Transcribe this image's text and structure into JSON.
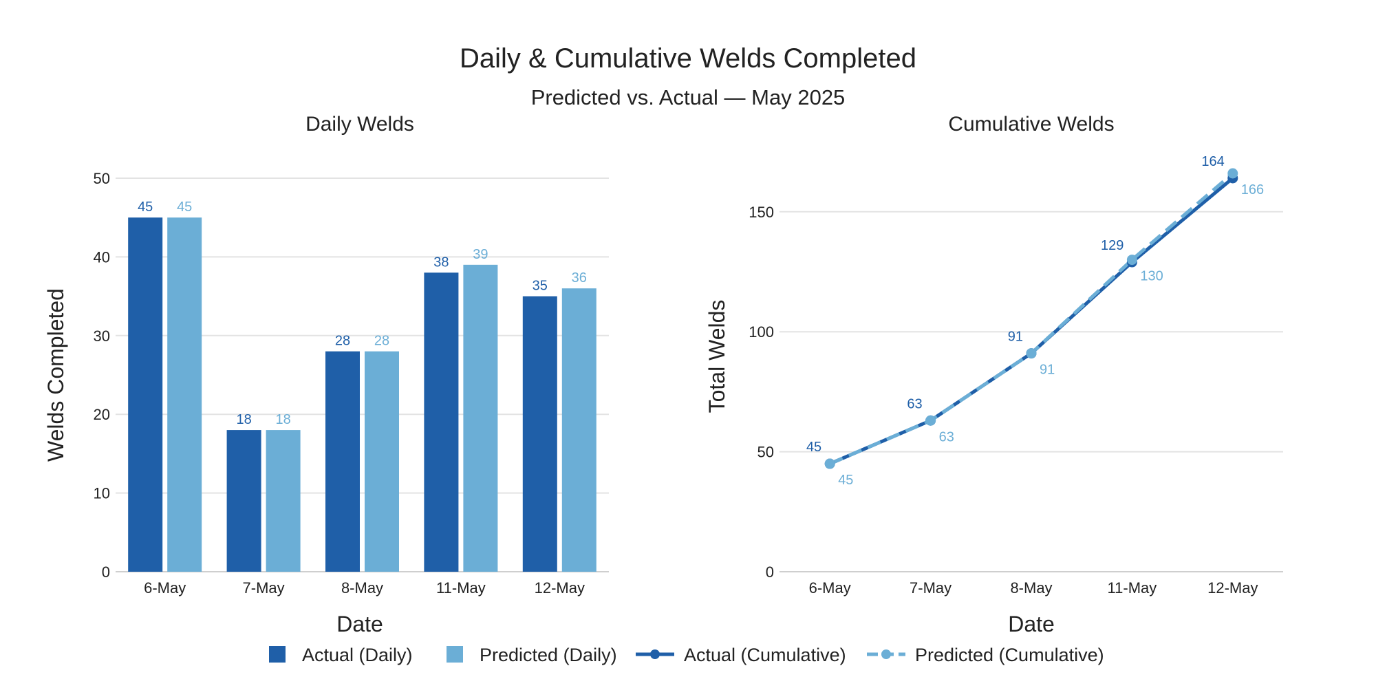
{
  "figure": {
    "title": "Daily & Cumulative Welds Completed",
    "subtitle": "Predicted vs. Actual — May 2025"
  },
  "colors": {
    "actual": "#1f5fa8",
    "predicted": "#6baed6",
    "grid": "#e3e3e3",
    "axis": "#cfcfcf",
    "text": "#222222"
  },
  "legend": {
    "items": [
      {
        "label": "Actual (Daily)",
        "marker": "square",
        "color": "actual"
      },
      {
        "label": "Predicted (Daily)",
        "marker": "square",
        "color": "predicted"
      },
      {
        "label": "Actual (Cumulative)",
        "marker": "line-solid",
        "color": "actual"
      },
      {
        "label": "Predicted (Cumulative)",
        "marker": "line-dashed",
        "color": "predicted"
      }
    ],
    "placement": "bottom-center"
  },
  "chart_data": [
    {
      "type": "bar",
      "title": "Daily Welds",
      "xlabel": "Date",
      "ylabel": "Welds Completed",
      "categories": [
        "6-May",
        "7-May",
        "8-May",
        "11-May",
        "12-May"
      ],
      "ylim": [
        0,
        50
      ],
      "yticks": [
        0,
        10,
        20,
        30,
        40,
        50
      ],
      "grid": true,
      "series": [
        {
          "name": "Actual (Daily)",
          "color": "actual",
          "values": [
            45,
            18,
            28,
            38,
            35
          ]
        },
        {
          "name": "Predicted (Daily)",
          "color": "predicted",
          "values": [
            45,
            18,
            28,
            39,
            36
          ]
        }
      ]
    },
    {
      "type": "line",
      "title": "Cumulative Welds",
      "xlabel": "Date",
      "ylabel": "Total Welds",
      "categories": [
        "6-May",
        "7-May",
        "8-May",
        "11-May",
        "12-May"
      ],
      "ylim": [
        0,
        166
      ],
      "yticks": [
        0,
        50,
        100,
        150
      ],
      "grid": true,
      "series": [
        {
          "name": "Actual (Cumulative)",
          "color": "actual",
          "dash": "solid",
          "values": [
            45,
            63,
            91,
            129,
            164
          ]
        },
        {
          "name": "Predicted (Cumulative)",
          "color": "predicted",
          "dash": "dashed",
          "values": [
            45,
            63,
            91,
            130,
            166
          ]
        }
      ]
    }
  ]
}
